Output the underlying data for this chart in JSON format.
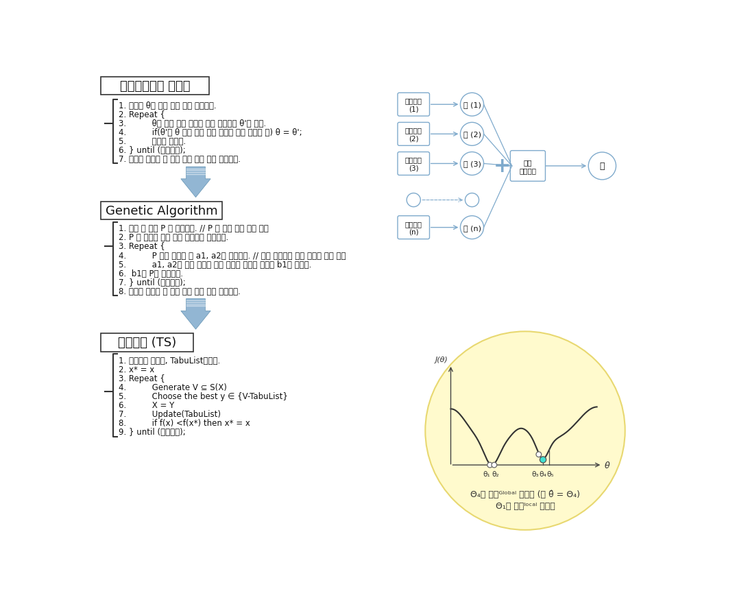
{
  "bg_color": "#ffffff",
  "sa_title": "시뮬레이티드 어닐링",
  "sa_lines": [
    "1. 초기해 θ와 최소 거리 값을 설정한다.",
    "2. Repeat {",
    "3.          θ의 이웃 중에 임의의 해를 선택하여 θ'라 한다.",
    "4.          if(θ'가 θ 보다 우수 또는 거리에 따른 조건이 참) θ = θ';",
    "5.          조사를 멈춘다.",
    "6. } until (멈춤조건);",
    "7. 그동안 발생한 해 중에 가장 좋은 것을 출력한다."
  ],
  "ga_title": "Genetic Algorithm",
  "ga_lines": [
    "1. 초기 해 집단 P 를 생성한다. // P 는 여러 개의 해를 가짐",
    "2. P 의 해들을 평가 하여 적합도를 부여한다.",
    "3. Repeat {",
    "4.          P 에서 두개의 해 a1, a2를 선택한다. // 높은 적합도의 해가 선택될 확률 높음",
    "5.          a1, a2를 교차 시키고 변이 연산을 가하여 자식해 b1를 얻는다.",
    "6.  b1를 P에 대치한다.",
    "7. } until (멈춤조건);",
    "8. 그동안 발생한 해 중에 가장 좋은 것을 출력한다."
  ],
  "ts_title": "타부서치 (TS)",
  "ts_lines": [
    "1. 초기해를 구하고, TabuList초기화.",
    "2. x* = x",
    "3. Repeat {",
    "4.          Generate V ⊆ S(X)",
    "5.          Choose the best y ∈ {V-TabuList}",
    "6.          X = Y",
    "7.          Update(TabuList)",
    "8.          if f(x) <f(x*) then x* = x",
    "9. } until (멈춤조건);"
  ],
  "arrow_color": "#7faacc",
  "node_border_color": "#7faacc",
  "bracket_color": "#333333",
  "text_color": "#111111",
  "diagram_node_labels_left": [
    "알고리즐\n(1)",
    "알고리즐\n(2)",
    "알고리즐\n(3)",
    "알고리즐\n(n)"
  ],
  "diagram_node_labels_mid": [
    "해 (1)",
    "해 (2)",
    "해 (3)",
    "해 (n)"
  ],
  "diagram_combine_label": "결합\n알고리즐",
  "diagram_final_label": "해",
  "graph_circle_color": "#fffacd",
  "graph_highlight_color": "#40e0d0"
}
